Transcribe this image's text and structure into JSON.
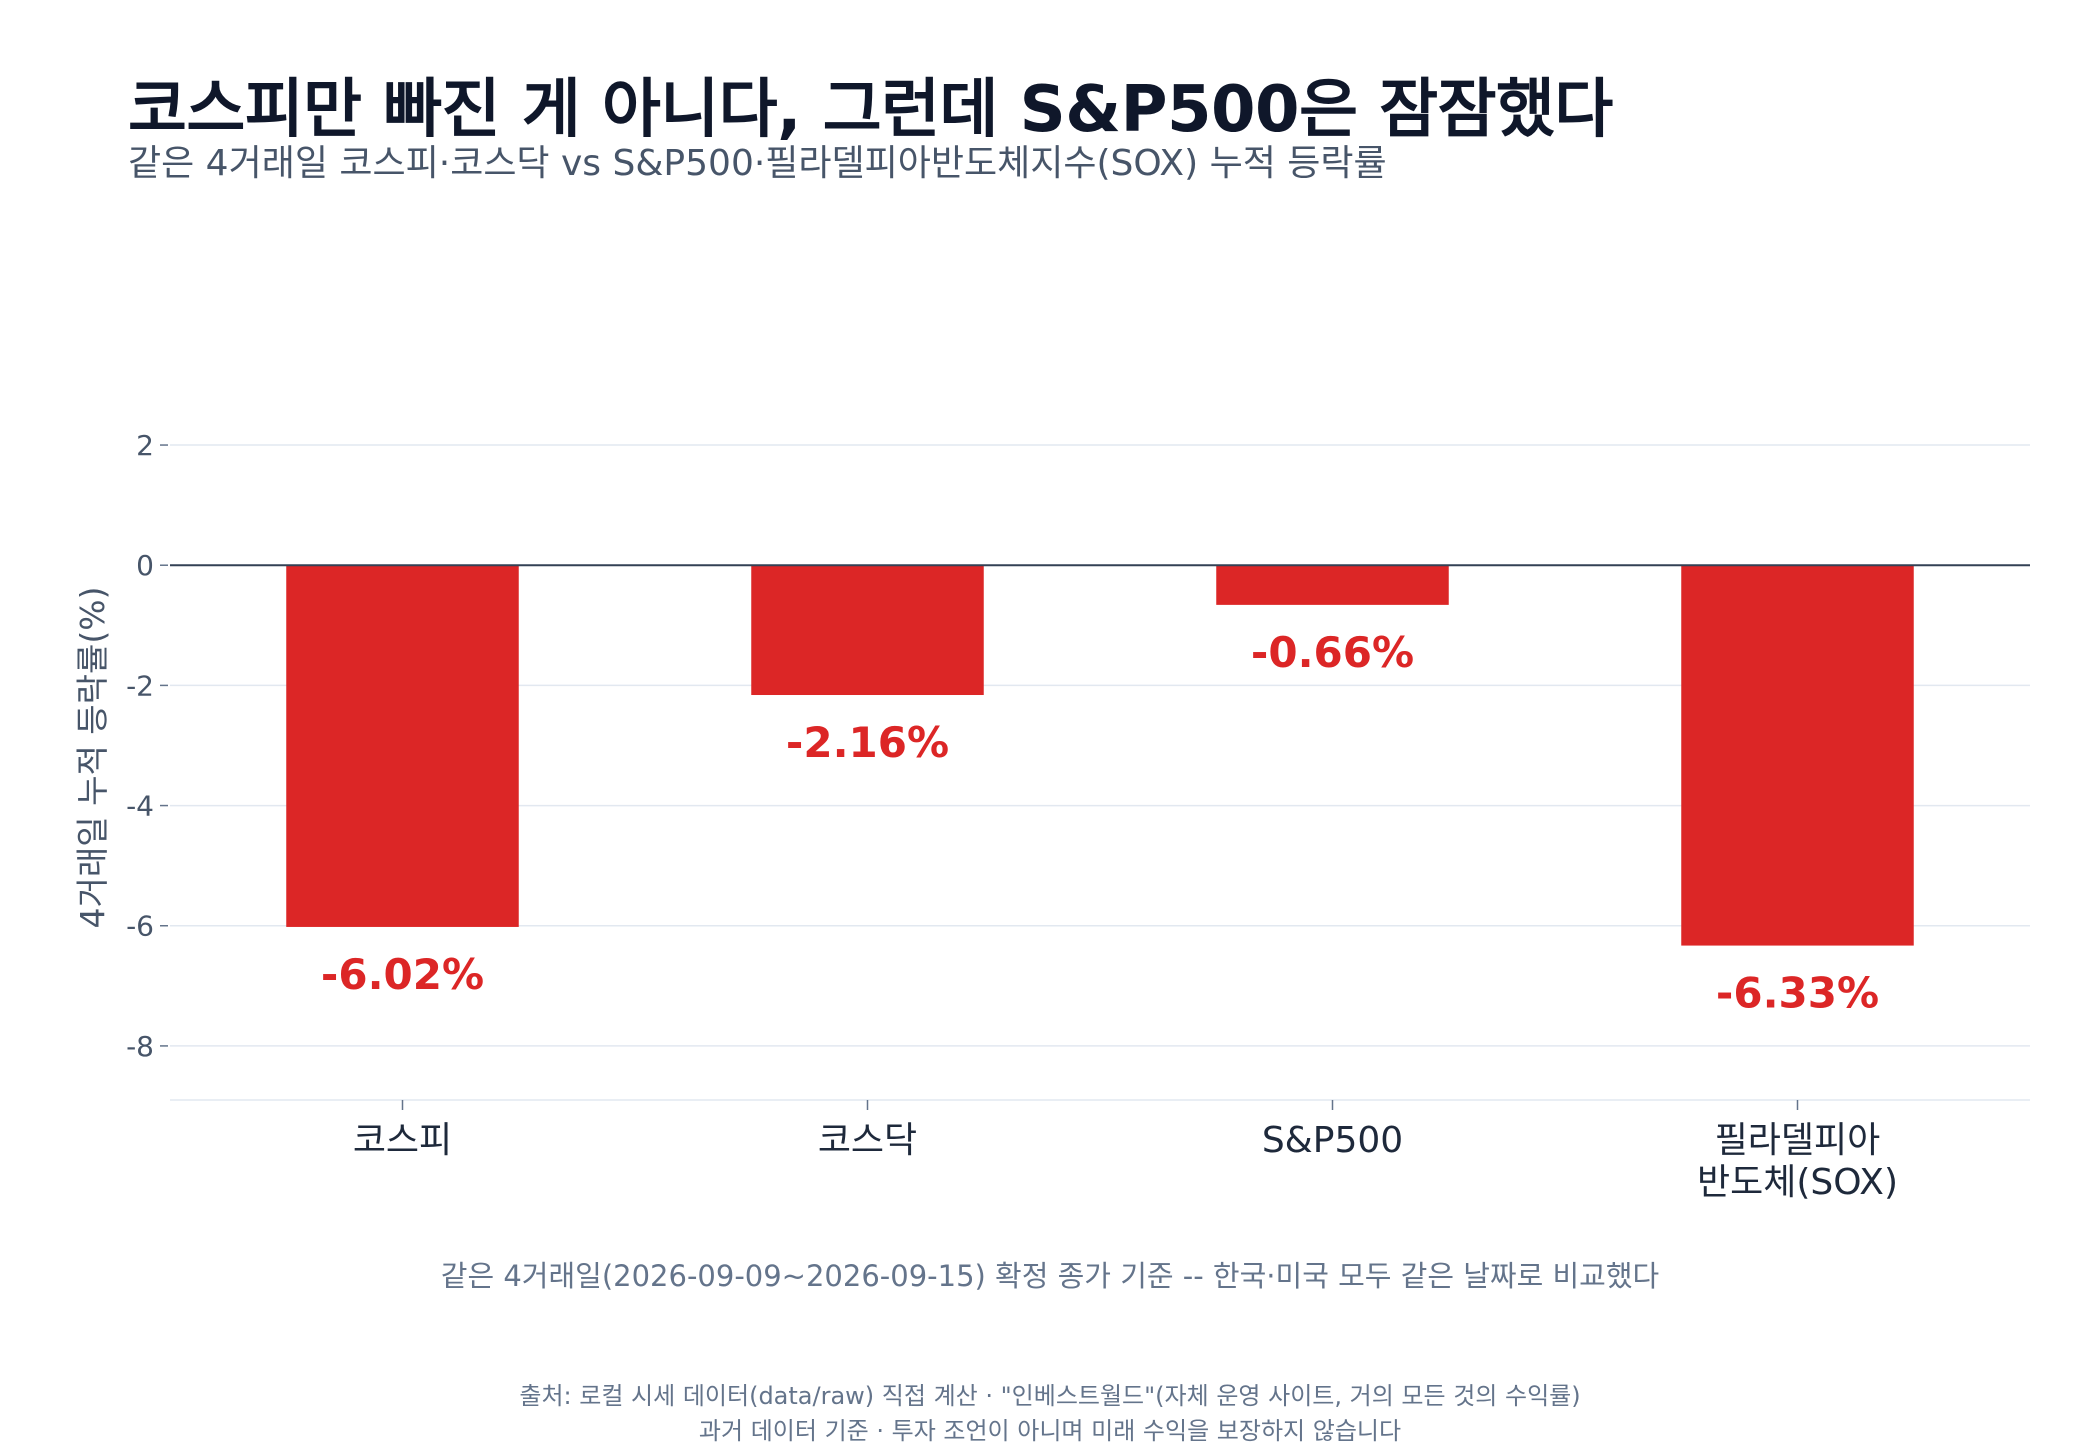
{
  "header": {
    "title": "코스피만 빠진 게 아니다, 그런데 S&P500은 잠잠했다",
    "subtitle": "같은 4거래일 코스피·코스닥 vs S&P500·필라델피아반도체지수(SOX) 누적 등락률"
  },
  "chart_data": {
    "type": "bar",
    "categories": [
      "코스피",
      "코스닥",
      "S&P500",
      "필라델피아\n반도체(SOX)"
    ],
    "values": [
      -6.02,
      -2.16,
      -0.66,
      -6.33
    ],
    "data_labels": [
      "-6.02%",
      "-2.16%",
      "-0.66%",
      "-6.33%"
    ],
    "ylabel": "4거래일 누적 등락률(%)",
    "yticks": [
      2,
      0,
      -2,
      -4,
      -6,
      -8
    ],
    "ylim": [
      -8.9,
      2.5
    ],
    "bar_color": "#dc2626",
    "label_color": "#dc2626",
    "grid": true,
    "legend": "none"
  },
  "footer": {
    "note": "같은 4거래일(2026-09-09~2026-09-15) 확정 종가 기준 -- 한국·미국 모두 같은 날짜로 비교했다",
    "source_line1": "출처: 로컬 시세 데이터(data/raw) 직접 계산 · \"인베스트월드\"(자체 운영 사이트, 거의 모든 것의 수익률)",
    "source_line2": "과거 데이터 기준 · 투자 조언이 아니며 미래 수익을 보장하지 않습니다"
  }
}
